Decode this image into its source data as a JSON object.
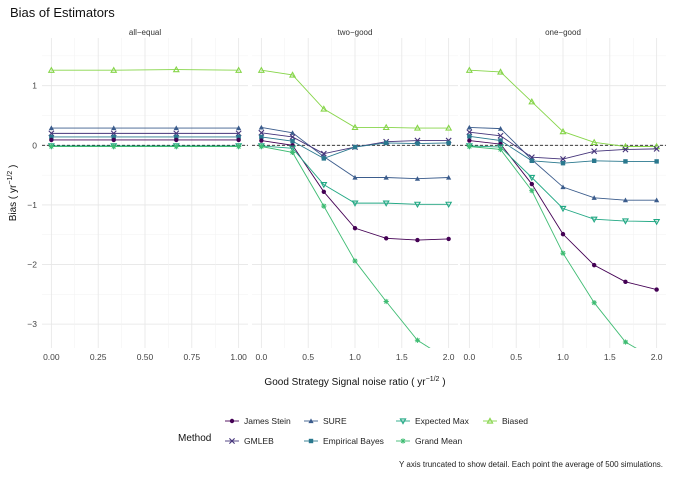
{
  "chart_data": {
    "type": "line",
    "title": "Bias of Estimators",
    "xlabel": "Good Strategy Signal noise ratio ( yr",
    "xlabel_exponent": "−1/2",
    "xlabel_tail": " )",
    "ylabel": "Bias ( yr",
    "ylabel_exponent": "−1/2",
    "ylabel_tail": " )",
    "caption": "Y axis truncated to show detail. Each point the average of 500 simulations.",
    "legend_title": "Method",
    "legend_position": "bottom",
    "x_ticks": [
      "0.00",
      "0.25",
      "0.50",
      "0.75",
      "1.00"
    ],
    "x_ticks_other": [
      "0.0",
      "0.5",
      "1.0",
      "1.5",
      "2.0"
    ],
    "y_ticks": [
      -3,
      -2,
      -1,
      0,
      1
    ],
    "ylim": [
      -3.4,
      1.8
    ],
    "grid": true,
    "reference_line": {
      "y": 0,
      "style": "dashed"
    },
    "colors": {
      "James Stein": "#440154",
      "GMLEB": "#45347a",
      "SURE": "#3b5c8c",
      "Empirical Bayes": "#2a788e",
      "Expected Max": "#22a884",
      "Grand Mean": "#3fbc73",
      "Biased": "#86d549"
    },
    "marker_shapes": {
      "James Stein": "circle",
      "GMLEB": "x",
      "SURE": "triangle",
      "Empirical Bayes": "square",
      "Expected Max": "triangle-down",
      "Grand Mean": "asterisk",
      "Biased": "triangle-open"
    },
    "legend_order": [
      "James Stein",
      "GMLEB",
      "SURE",
      "Empirical Bayes",
      "Expected Max",
      "Grand Mean",
      "Biased"
    ],
    "panels": [
      {
        "name": "all−equal",
        "xlim": [
          -0.05,
          1.05
        ],
        "x": [
          0,
          0.333,
          0.667,
          1.0
        ],
        "series": [
          {
            "name": "Biased",
            "values": [
              1.26,
              1.26,
              1.27,
              1.26
            ]
          },
          {
            "name": "SURE",
            "values": [
              0.29,
              0.29,
              0.29,
              0.29
            ]
          },
          {
            "name": "GMLEB",
            "values": [
              0.2,
              0.2,
              0.2,
              0.2
            ]
          },
          {
            "name": "Empirical Bayes",
            "values": [
              0.14,
              0.14,
              0.14,
              0.14
            ]
          },
          {
            "name": "James Stein",
            "values": [
              0.09,
              0.09,
              0.09,
              0.09
            ]
          },
          {
            "name": "Expected Max",
            "values": [
              -0.01,
              -0.01,
              -0.01,
              -0.01
            ]
          },
          {
            "name": "Grand Mean",
            "values": [
              -0.02,
              -0.02,
              -0.02,
              -0.02
            ]
          }
        ]
      },
      {
        "name": "two−good",
        "xlim": [
          -0.1,
          2.1
        ],
        "x": [
          0,
          0.333,
          0.667,
          1.0,
          1.333,
          1.667,
          2.0
        ],
        "series": [
          {
            "name": "Biased",
            "values": [
              1.26,
              1.18,
              0.61,
              0.3,
              0.3,
              0.29,
              0.29
            ]
          },
          {
            "name": "SURE",
            "values": [
              0.3,
              0.21,
              -0.19,
              -0.54,
              -0.54,
              -0.56,
              -0.54
            ]
          },
          {
            "name": "GMLEB",
            "values": [
              0.21,
              0.14,
              -0.14,
              -0.03,
              0.06,
              0.08,
              0.08
            ]
          },
          {
            "name": "Empirical Bayes",
            "values": [
              0.14,
              0.07,
              -0.22,
              -0.03,
              0.04,
              0.03,
              0.04
            ]
          },
          {
            "name": "James Stein",
            "values": [
              0.08,
              0.0,
              -0.78,
              -1.39,
              -1.56,
              -1.59,
              -1.57
            ]
          },
          {
            "name": "Expected Max",
            "values": [
              -0.01,
              -0.05,
              -0.66,
              -0.97,
              -0.97,
              -0.99,
              -0.99
            ]
          },
          {
            "name": "Grand Mean",
            "values": [
              -0.02,
              -0.12,
              -1.02,
              -1.94,
              -2.62,
              -3.27,
              -3.6
            ]
          }
        ]
      },
      {
        "name": "one−good",
        "xlim": [
          -0.1,
          2.1
        ],
        "x": [
          0,
          0.333,
          0.667,
          1.0,
          1.333,
          1.667,
          2.0
        ],
        "series": [
          {
            "name": "Biased",
            "values": [
              1.26,
              1.23,
              0.73,
              0.23,
              0.05,
              -0.02,
              -0.02
            ]
          },
          {
            "name": "SURE",
            "values": [
              0.3,
              0.28,
              -0.24,
              -0.7,
              -0.88,
              -0.92,
              -0.92
            ]
          },
          {
            "name": "GMLEB",
            "values": [
              0.22,
              0.16,
              -0.2,
              -0.23,
              -0.1,
              -0.07,
              -0.06
            ]
          },
          {
            "name": "Empirical Bayes",
            "values": [
              0.15,
              0.08,
              -0.26,
              -0.3,
              -0.26,
              -0.27,
              -0.27
            ]
          },
          {
            "name": "James Stein",
            "values": [
              0.08,
              0.02,
              -0.65,
              -1.49,
              -2.01,
              -2.29,
              -2.42
            ]
          },
          {
            "name": "Expected Max",
            "values": [
              -0.01,
              -0.03,
              -0.54,
              -1.06,
              -1.24,
              -1.27,
              -1.28
            ]
          },
          {
            "name": "Grand Mean",
            "values": [
              -0.02,
              -0.07,
              -0.76,
              -1.81,
              -2.64,
              -3.3,
              -3.6
            ]
          }
        ]
      }
    ]
  }
}
